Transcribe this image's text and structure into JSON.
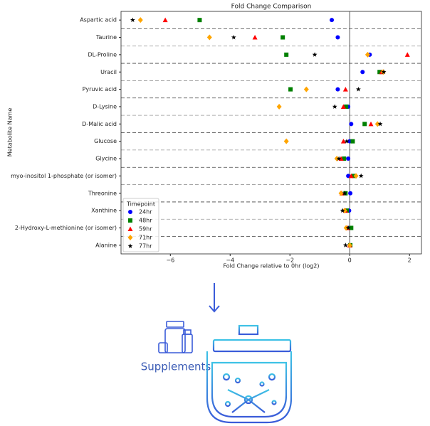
{
  "chart_data": {
    "type": "dot",
    "title": "Fold Change Comparison",
    "x_label": "Fold Change relative to 0hr (log2)",
    "y_label": "Metabolite Name",
    "categories": [
      "Aspartic acid",
      "Taurine",
      "DL-Proline",
      "Uracil",
      "Pyruvic acid",
      "D-Lysine",
      "D-Malic acid",
      "Glucose",
      "Glycine",
      "myo-inositol 1-phosphate (or isomer)",
      "Threonine",
      "Xanthine",
      "2-Hydroxy-L-methionine (or isomer)",
      "Alanine"
    ],
    "xlim": [
      -7.65,
      2.4
    ],
    "xticks": [
      {
        "value": -6,
        "label": "−6"
      },
      {
        "value": -4,
        "label": "−4"
      },
      {
        "value": -2,
        "label": "−2"
      },
      0,
      2
    ],
    "reference_x": 0,
    "legend_title": "Timepoint",
    "legend": "lower left",
    "series": [
      {
        "name": "24hr",
        "color": "#0000ff",
        "marker": "circle",
        "values": [
          -0.6,
          -0.4,
          0.67,
          0.43,
          -0.4,
          -0.05,
          0.05,
          0,
          -0.05,
          -0.05,
          0.02,
          -0.02,
          0,
          0
        ]
      },
      {
        "name": "48hr",
        "color": "#008000",
        "marker": "square",
        "values": [
          -5.02,
          -2.24,
          -2.12,
          1.0,
          -1.98,
          -0.12,
          0.5,
          0.1,
          -0.19,
          0.14,
          -0.14,
          -0.1,
          0.05,
          0.02
        ]
      },
      {
        "name": "59hr",
        "color": "#ff0000",
        "marker": "triangle",
        "values": [
          -6.17,
          -3.17,
          1.93,
          1.07,
          -0.14,
          -0.21,
          0.71,
          -0.21,
          -0.29,
          0.05,
          -0.26,
          -0.14,
          -0.07,
          0
        ]
      },
      {
        "name": "71hr",
        "color": "#ffa500",
        "marker": "diamond",
        "values": [
          -7.0,
          -4.69,
          0.6,
          1.12,
          -1.45,
          -2.36,
          0.93,
          -2.12,
          -0.43,
          0.21,
          -0.29,
          -0.17,
          -0.12,
          0
        ]
      },
      {
        "name": "77hr",
        "color": "#000000",
        "marker": "star",
        "values": [
          -7.26,
          -3.88,
          -1.17,
          1.14,
          0.29,
          -0.5,
          1.02,
          -0.1,
          -0.36,
          0.38,
          -0.17,
          -0.24,
          -0.05,
          -0.14
        ]
      }
    ]
  },
  "diagram": {
    "label": "Supplements"
  }
}
